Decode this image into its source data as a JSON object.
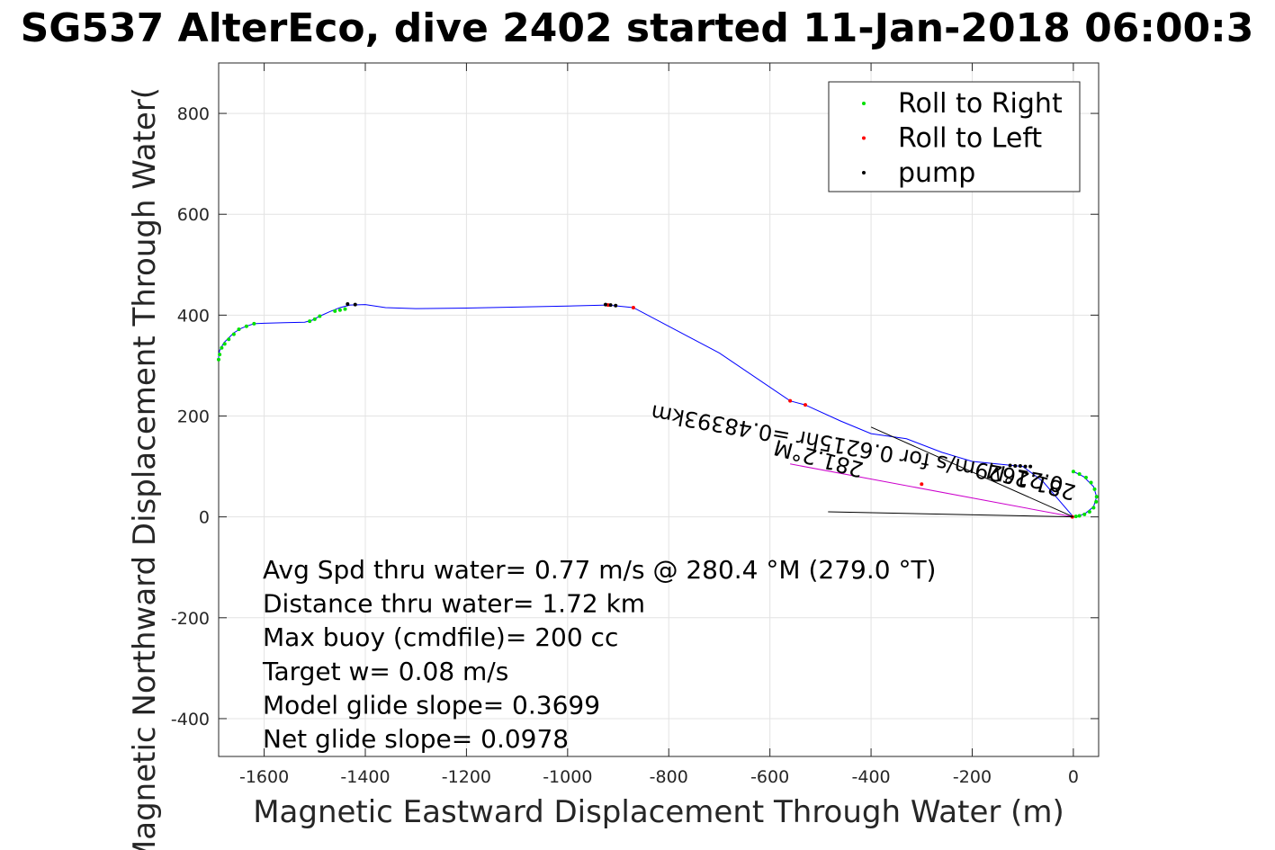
{
  "chart_data": {
    "type": "line",
    "title": "SG537 AlterEco, dive 2402 started 11-Jan-2018 06:00:3",
    "xlabel": "Magnetic Eastward Displacement Through Water (m)",
    "ylabel": "Magnetic Northward Displacement Through Water(",
    "xlim": [
      -1690,
      50
    ],
    "ylim": [
      -475,
      900
    ],
    "x_ticks": [
      -1600,
      -1400,
      -1200,
      -1000,
      -800,
      -600,
      -400,
      -200,
      0
    ],
    "y_ticks": [
      -400,
      -200,
      0,
      200,
      400,
      600,
      800
    ],
    "grid": true,
    "legend_position": "top-right",
    "legend": [
      {
        "label": "Roll to Right",
        "color": "#00e000"
      },
      {
        "label": "Roll to Left",
        "color": "#ff0000"
      },
      {
        "label": "pump",
        "color": "#000000"
      }
    ],
    "series": [
      {
        "style": "line",
        "color": "#0000ff",
        "x": [
          0,
          20,
          40,
          46,
          40,
          25,
          12,
          0,
          -60,
          -100,
          -120,
          -200,
          -260,
          -330,
          -400,
          -460,
          -530,
          -560,
          -700,
          -870,
          -920,
          -1000,
          -1100,
          -1200,
          -1300,
          -1360,
          -1400,
          -1430,
          -1450,
          -1470,
          -1490,
          -1505,
          -1520,
          -1560,
          -1600,
          -1620,
          -1635,
          -1645,
          -1660,
          -1670,
          -1680,
          -1688,
          -1690,
          -1690
        ],
        "y": [
          90,
          80,
          60,
          40,
          20,
          8,
          2,
          0,
          70,
          100,
          102,
          110,
          128,
          155,
          165,
          190,
          222,
          230,
          325,
          415,
          420,
          418,
          416,
          414,
          413,
          415,
          421,
          420,
          415,
          407,
          398,
          390,
          386,
          385,
          384,
          383,
          378,
          374,
          365,
          355,
          345,
          330,
          320,
          310
        ]
      },
      {
        "name": "Roll to Right",
        "style": "points",
        "color": "#00e000",
        "x": [
          0,
          12,
          25,
          35,
          42,
          46,
          45,
          40,
          32,
          22,
          12,
          5,
          -1510,
          -1500,
          -1490,
          -1460,
          -1450,
          -1440,
          -1620,
          -1635,
          -1650,
          -1660,
          -1670,
          -1678,
          -1684,
          -1688,
          -1690
        ],
        "y": [
          90,
          85,
          78,
          68,
          55,
          40,
          30,
          18,
          10,
          5,
          2,
          1,
          388,
          392,
          398,
          408,
          410,
          412,
          383,
          378,
          372,
          362,
          352,
          343,
          335,
          322,
          312
        ]
      },
      {
        "name": "Roll to Left",
        "style": "points",
        "color": "#ff0000",
        "x": [
          -2,
          -300,
          -530,
          -560,
          -870,
          -920
        ],
        "y": [
          0,
          65,
          222,
          230,
          415,
          420
        ],
        "size": 2
      },
      {
        "name": "pump",
        "style": "points",
        "color": "#000000",
        "x": [
          -85,
          -95,
          -105,
          -115,
          -125,
          -905,
          -915,
          -925,
          -1420,
          -1435
        ],
        "y": [
          100,
          100,
          101,
          101,
          102,
          419,
          420,
          421,
          421,
          422
        ]
      },
      {
        "style": "line",
        "color": "#cc00cc",
        "x": [
          0,
          -560
        ],
        "y": [
          0,
          105
        ]
      }
    ],
    "annotations": [
      {
        "text": "0.21629m/s for 0.6215hr =0.48393km",
        "x": -425,
        "y": 150,
        "rotation_deg": 190,
        "font_px": 24
      },
      {
        "text": "281.2°M",
        "x": -80,
        "y": 85,
        "rotation_deg": 195,
        "font_px": 24
      },
      {
        "text": "281.2°M",
        "x": -500,
        "y": 130,
        "rotation_deg": 195,
        "font_px": 24
      }
    ],
    "vector_lines": [
      {
        "x": [
          0,
          -400
        ],
        "y": [
          0,
          178
        ],
        "color": "#000000"
      },
      {
        "x": [
          0,
          -485
        ],
        "y": [
          0,
          10
        ],
        "color": "#000000"
      }
    ],
    "stats_lines": [
      "Avg Spd thru water=  0.77 m/s @ 280.4 °M (279.0 °T)",
      "Distance thru water=  1.72 km",
      "Max buoy (cmdfile)= 200 cc",
      "Target w= 0.08 m/s",
      "Model glide slope= 0.3699",
      "Net glide slope= 0.0978"
    ]
  }
}
